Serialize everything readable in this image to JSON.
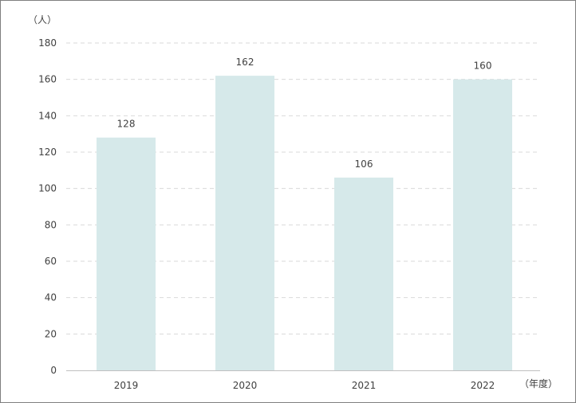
{
  "chart_data": {
    "type": "bar",
    "categories": [
      "2019",
      "2020",
      "2021",
      "2022"
    ],
    "values": [
      128,
      162,
      106,
      160
    ],
    "data_labels": [
      "128",
      "162",
      "106",
      "160"
    ],
    "y_ticks": [
      "0",
      "20",
      "40",
      "60",
      "80",
      "100",
      "120",
      "140",
      "160",
      "180"
    ],
    "ylabel": "（人）",
    "xlabel": "（年度）",
    "ylim": [
      0,
      180
    ],
    "grid": true,
    "colors": {
      "bar": "#d6e9ea",
      "grid": "#d9d9d9",
      "axis": "#bfbfbf",
      "text": "#404040"
    }
  }
}
